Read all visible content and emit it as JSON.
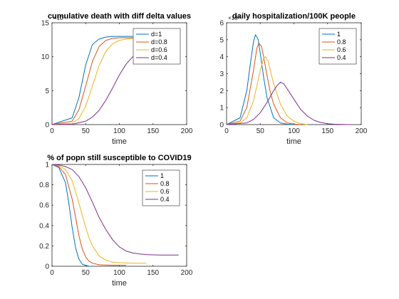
{
  "colors": {
    "blue": "#0072BD",
    "orange": "#D95319",
    "yellow": "#EDB120",
    "purple": "#7E2F8E"
  },
  "chart_data": [
    {
      "type": "line",
      "title": "cumulative death with diff delta values",
      "xlabel": "time",
      "ylabel": "",
      "exponent_label": "×10⁴",
      "xlim": [
        0,
        200
      ],
      "ylim": [
        0,
        15
      ],
      "xticks": [
        0,
        50,
        100,
        150,
        200
      ],
      "yticks": [
        0,
        5,
        10,
        15
      ],
      "legend_position": "top-right",
      "series": [
        {
          "name": "d=1",
          "color": "#0072BD",
          "x": [
            0,
            30,
            40,
            50,
            60,
            70,
            80,
            90,
            100,
            110,
            120
          ],
          "y": [
            0,
            1.0,
            4.0,
            8.8,
            11.8,
            12.6,
            12.9,
            13.0,
            13.0,
            13.0,
            13.0
          ]
        },
        {
          "name": "d=0.8",
          "color": "#D95319",
          "x": [
            0,
            30,
            40,
            50,
            60,
            70,
            80,
            90,
            100,
            110,
            120,
            130
          ],
          "y": [
            0,
            0.5,
            2.2,
            5.7,
            9.3,
            11.5,
            12.4,
            12.7,
            12.8,
            12.8,
            12.8,
            12.8
          ]
        },
        {
          "name": "d=0.6",
          "color": "#EDB120",
          "x": [
            0,
            30,
            40,
            50,
            60,
            70,
            80,
            90,
            100,
            110,
            120,
            130,
            140
          ],
          "y": [
            0,
            0.2,
            0.9,
            2.7,
            5.7,
            8.7,
            10.8,
            11.9,
            12.4,
            12.6,
            12.7,
            12.7,
            12.7
          ]
        },
        {
          "name": "d=0.4",
          "color": "#7E2F8E",
          "x": [
            0,
            30,
            50,
            60,
            70,
            80,
            90,
            100,
            110,
            120,
            130,
            140,
            150,
            160,
            170,
            180
          ],
          "y": [
            0,
            0.05,
            0.5,
            1.1,
            2.1,
            3.6,
            5.4,
            7.3,
            8.9,
            10.0,
            10.6,
            10.9,
            11.05,
            11.1,
            11.1,
            11.1
          ]
        }
      ]
    },
    {
      "type": "line",
      "title": "daily hospitalization/100K people",
      "xlabel": "time",
      "ylabel": "",
      "exponent_label": "×10⁴",
      "xlim": [
        0,
        200
      ],
      "ylim": [
        0,
        6
      ],
      "xticks": [
        0,
        50,
        100,
        150,
        200
      ],
      "yticks": [
        0,
        1,
        2,
        3,
        4,
        5,
        6
      ],
      "legend_position": "top-right",
      "series": [
        {
          "name": "1",
          "color": "#0072BD",
          "x": [
            0,
            20,
            30,
            35,
            40,
            43,
            47,
            50,
            55,
            60,
            70,
            80,
            90,
            100
          ],
          "y": [
            0,
            0.4,
            2.0,
            3.5,
            4.9,
            5.3,
            5.0,
            4.2,
            2.8,
            1.6,
            0.4,
            0.1,
            0.02,
            0
          ]
        },
        {
          "name": "0.8",
          "color": "#D95319",
          "x": [
            0,
            20,
            30,
            40,
            45,
            48,
            52,
            55,
            60,
            65,
            70,
            80,
            90,
            100,
            110
          ],
          "y": [
            0,
            0.2,
            1.0,
            3.2,
            4.5,
            4.8,
            4.6,
            4.0,
            2.9,
            1.9,
            1.2,
            0.4,
            0.1,
            0.03,
            0
          ]
        },
        {
          "name": "0.6",
          "color": "#EDB120",
          "x": [
            0,
            20,
            30,
            40,
            50,
            55,
            58,
            62,
            65,
            70,
            80,
            90,
            100,
            110,
            120
          ],
          "y": [
            0,
            0.1,
            0.4,
            1.4,
            3.2,
            3.9,
            4.0,
            3.7,
            3.2,
            2.4,
            1.2,
            0.5,
            0.2,
            0.05,
            0
          ]
        },
        {
          "name": "0.4",
          "color": "#7E2F8E",
          "x": [
            0,
            30,
            40,
            50,
            60,
            70,
            75,
            80,
            85,
            90,
            100,
            110,
            120,
            130,
            140,
            150,
            160,
            170,
            180,
            188
          ],
          "y": [
            0,
            0.1,
            0.3,
            0.7,
            1.3,
            2.0,
            2.3,
            2.5,
            2.4,
            2.1,
            1.5,
            0.9,
            0.5,
            0.25,
            0.12,
            0.05,
            0.02,
            0.01,
            0,
            0
          ]
        }
      ]
    },
    {
      "type": "line",
      "title": "% of popn still susceptible to COVID19",
      "xlabel": "time",
      "ylabel": "",
      "xlim": [
        0,
        200
      ],
      "ylim": [
        0,
        1
      ],
      "xticks": [
        0,
        50,
        100,
        150,
        200
      ],
      "yticks": [
        0,
        0.2,
        0.4,
        0.6,
        0.8,
        1
      ],
      "legend_position": "top-right",
      "series": [
        {
          "name": "1",
          "color": "#0072BD",
          "x": [
            0,
            10,
            20,
            25,
            30,
            35,
            40,
            45,
            50,
            55,
            60
          ],
          "y": [
            1,
            0.97,
            0.82,
            0.62,
            0.38,
            0.18,
            0.07,
            0.02,
            0.01,
            0,
            0
          ]
        },
        {
          "name": "0.8",
          "color": "#D95319",
          "x": [
            0,
            10,
            20,
            30,
            35,
            40,
            45,
            50,
            55,
            60,
            70,
            80,
            90,
            100,
            110
          ],
          "y": [
            1,
            0.98,
            0.9,
            0.66,
            0.48,
            0.3,
            0.17,
            0.09,
            0.05,
            0.03,
            0.015,
            0.012,
            0.01,
            0.01,
            0.01
          ]
        },
        {
          "name": "0.6",
          "color": "#EDB120",
          "x": [
            0,
            10,
            20,
            30,
            40,
            45,
            50,
            55,
            60,
            70,
            80,
            90,
            100,
            120,
            140
          ],
          "y": [
            1,
            0.99,
            0.95,
            0.84,
            0.62,
            0.5,
            0.38,
            0.28,
            0.2,
            0.1,
            0.06,
            0.04,
            0.035,
            0.03,
            0.03
          ]
        },
        {
          "name": "0.4",
          "color": "#7E2F8E",
          "x": [
            0,
            10,
            20,
            30,
            40,
            50,
            60,
            70,
            80,
            90,
            100,
            110,
            120,
            130,
            140,
            150,
            160,
            170,
            180,
            188
          ],
          "y": [
            1,
            0.995,
            0.98,
            0.95,
            0.88,
            0.77,
            0.63,
            0.48,
            0.36,
            0.26,
            0.19,
            0.15,
            0.13,
            0.12,
            0.115,
            0.112,
            0.11,
            0.11,
            0.11,
            0.11
          ]
        }
      ]
    }
  ]
}
